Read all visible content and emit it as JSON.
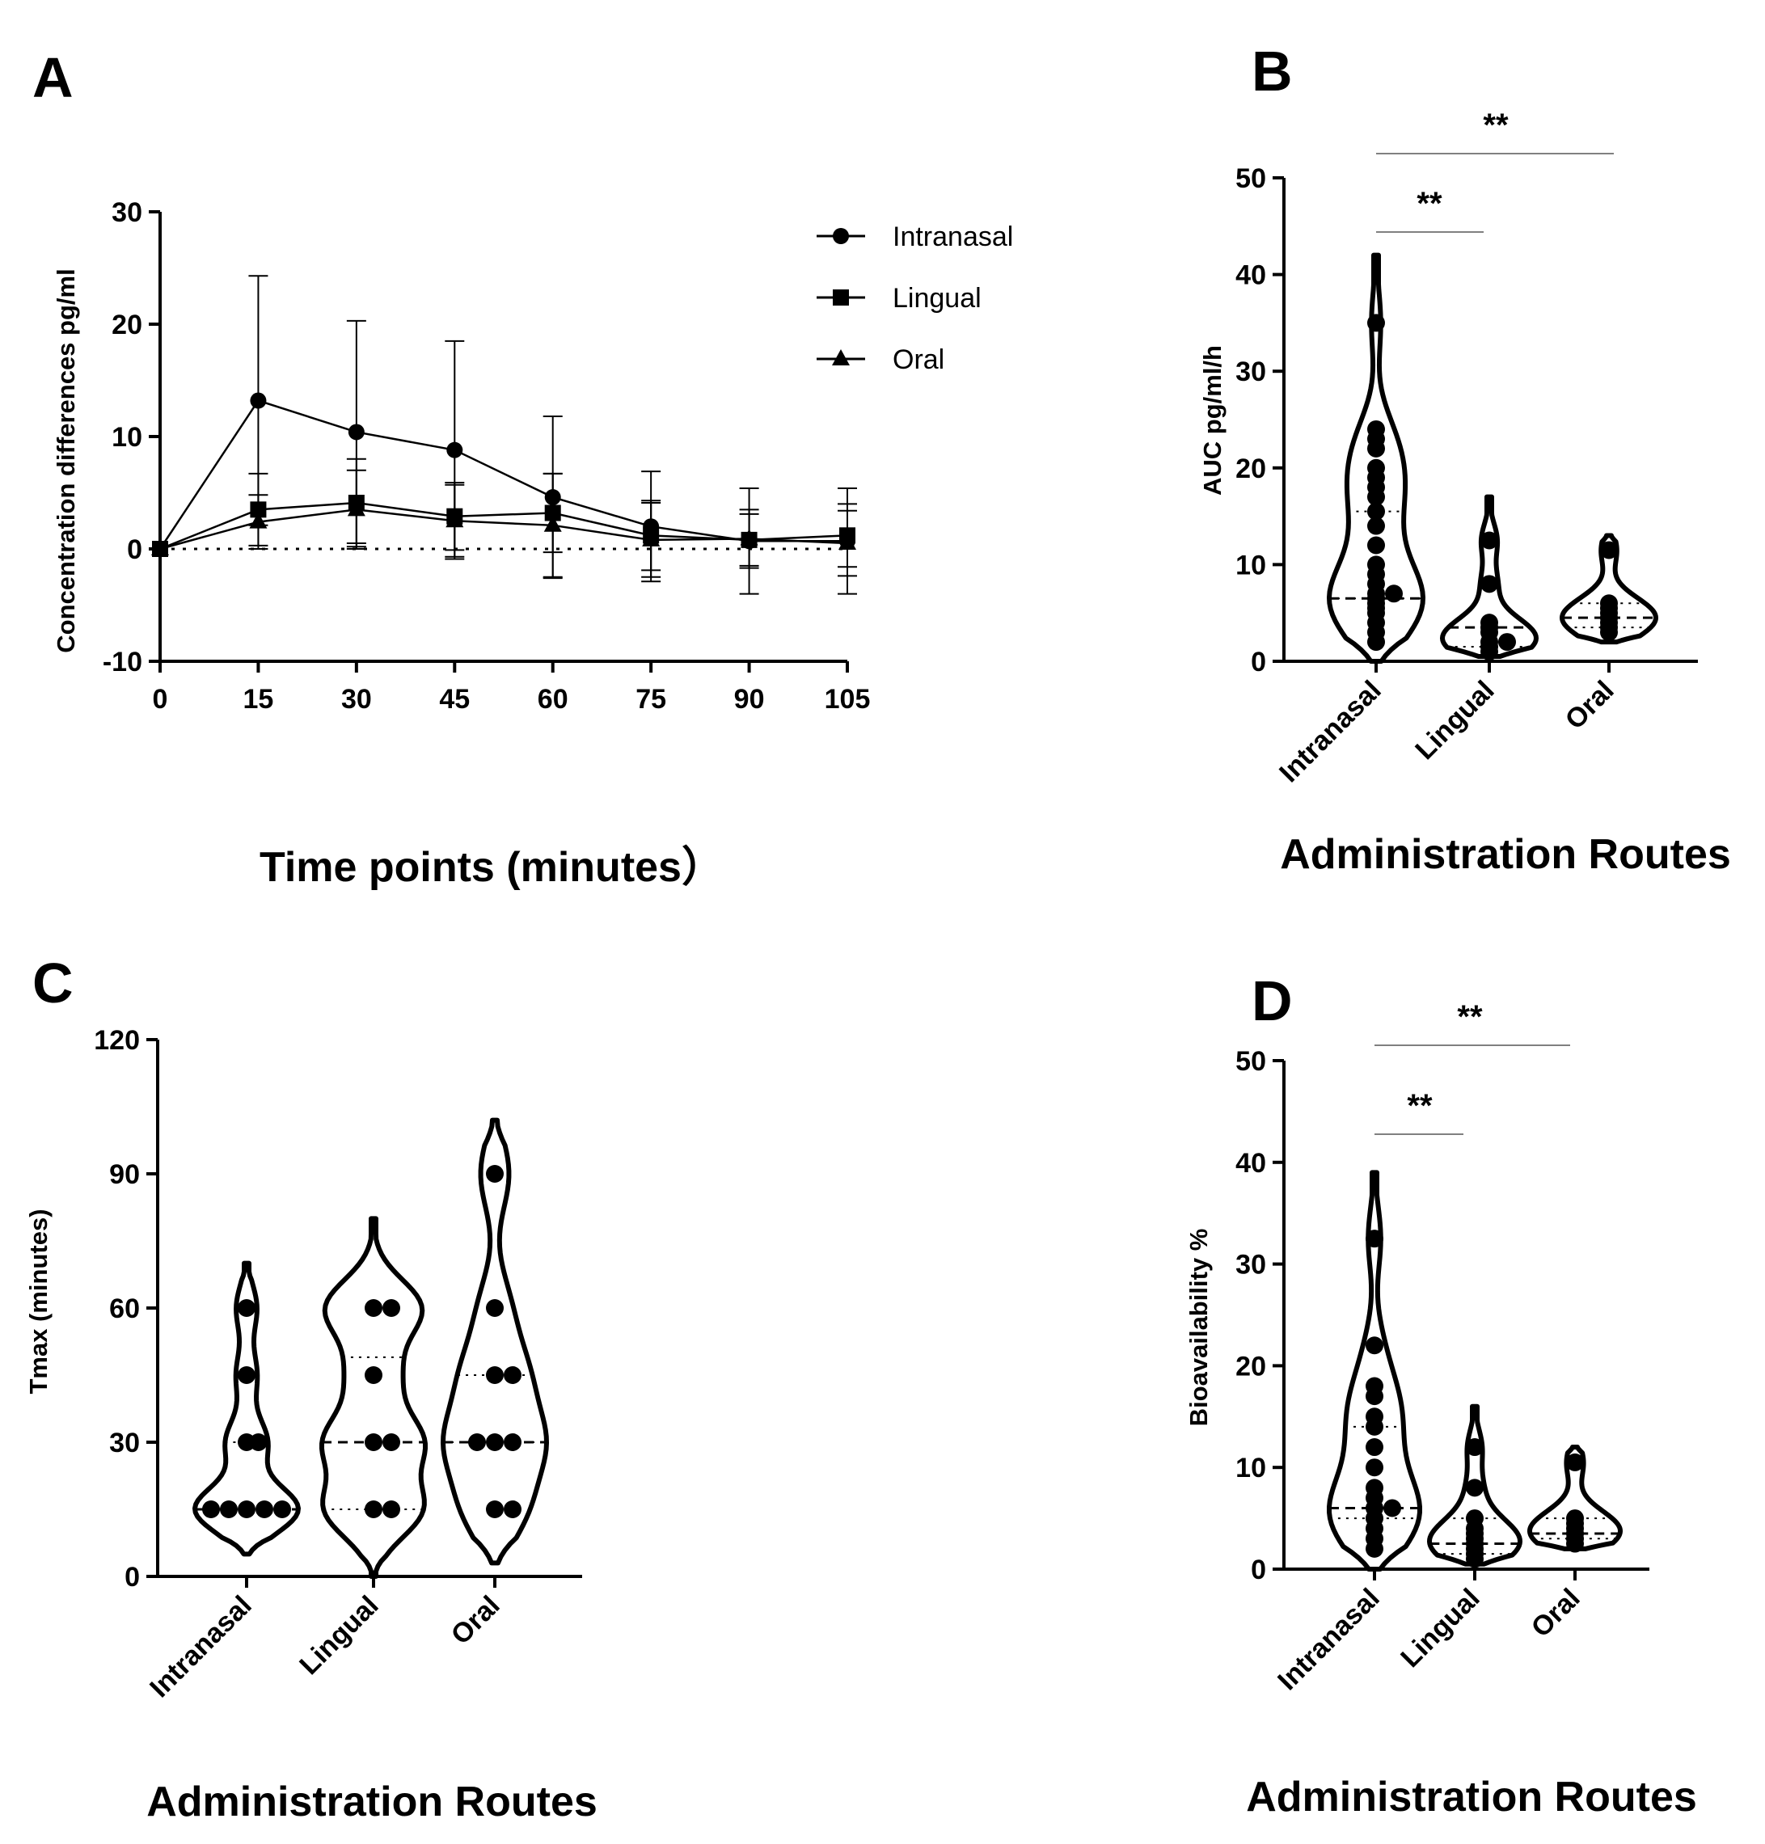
{
  "chart_data": [
    {
      "panel": "A",
      "type": "line",
      "x": [
        0,
        15,
        30,
        45,
        60,
        75,
        90,
        105
      ],
      "xlabel": "Time points (minutes）",
      "ylabel": "Concentration differences pg/ml",
      "xlim": [
        0,
        105
      ],
      "ylim": [
        -10,
        30
      ],
      "xticks": [
        "0",
        "15",
        "30",
        "45",
        "60",
        "75",
        "90",
        "105"
      ],
      "yticks": [
        "-10",
        "0",
        "10",
        "20",
        "30"
      ],
      "reference_line": {
        "y": 0,
        "style": "dotted"
      },
      "legend_position": "top-right",
      "series": [
        {
          "name": "Intranasal",
          "marker": "circle",
          "values": [
            0,
            13.2,
            10.4,
            8.8,
            4.6,
            2.0,
            0.7,
            0.7
          ],
          "error": [
            0,
            11.1,
            9.9,
            9.7,
            7.2,
            4.9,
            4.7,
            4.7
          ]
        },
        {
          "name": "Lingual",
          "marker": "square",
          "values": [
            0,
            3.5,
            4.1,
            2.9,
            3.2,
            1.2,
            0.8,
            1.2
          ],
          "error": [
            0,
            3.2,
            3.9,
            3.0,
            3.5,
            3.1,
            2.3,
            2.8
          ]
        },
        {
          "name": "Oral",
          "marker": "triangle",
          "values": [
            0,
            2.4,
            3.5,
            2.5,
            2.1,
            0.8,
            0.9,
            0.5
          ],
          "error": [
            0,
            2.4,
            3.5,
            3.2,
            4.6,
            3.3,
            2.6,
            2.9
          ]
        }
      ]
    },
    {
      "panel": "B",
      "type": "violin",
      "categories": [
        "Intranasal",
        "Lingual",
        "Oral"
      ],
      "xlabel": "Administration Routes",
      "ylabel": "AUC pg/ml/h",
      "ylim": [
        0,
        50
      ],
      "yticks": [
        "0",
        "10",
        "20",
        "30",
        "40",
        "50"
      ],
      "series": [
        {
          "name": "Intranasal",
          "range": [
            0,
            42
          ],
          "median": 6.5,
          "quartiles": [
            6.5,
            15.5
          ],
          "points": [
            2,
            3,
            4,
            5,
            5.5,
            6,
            6.5,
            7,
            7,
            8,
            9,
            10,
            12,
            14,
            15.5,
            17,
            18,
            19,
            20,
            22,
            23,
            24,
            35
          ]
        },
        {
          "name": "Lingual",
          "range": [
            0.5,
            17
          ],
          "median": 3.5,
          "quartiles": [
            1.5,
            8
          ],
          "points": [
            1,
            1.5,
            2,
            2,
            3,
            3.5,
            4,
            8,
            12.5
          ]
        },
        {
          "name": "Oral",
          "range": [
            2,
            13
          ],
          "median": 4.5,
          "quartiles": [
            3.5,
            6
          ],
          "points": [
            3,
            3.5,
            4,
            4.5,
            5,
            5.5,
            6,
            11.5
          ]
        }
      ],
      "significance": [
        {
          "groups": [
            "Intranasal",
            "Lingual"
          ],
          "label": "**"
        },
        {
          "groups": [
            "Intranasal",
            "Oral"
          ],
          "label": "**"
        }
      ]
    },
    {
      "panel": "C",
      "type": "violin",
      "categories": [
        "Intranasal",
        "Lingual",
        "Oral"
      ],
      "xlabel": "Administration Routes",
      "ylabel": "Tmax (minutes)",
      "ylim": [
        0,
        120
      ],
      "yticks": [
        "0",
        "30",
        "60",
        "90",
        "120"
      ],
      "series": [
        {
          "name": "Intranasal",
          "range": [
            5,
            70
          ],
          "median": 15,
          "quartiles": [
            15,
            30
          ],
          "points": [
            15,
            15,
            15,
            15,
            15,
            30,
            30,
            45,
            60
          ]
        },
        {
          "name": "Lingual",
          "range": [
            0,
            80
          ],
          "median": 30,
          "quartiles": [
            15,
            49
          ],
          "points": [
            15,
            15,
            30,
            30,
            45,
            60,
            60
          ]
        },
        {
          "name": "Oral",
          "range": [
            3,
            102
          ],
          "median": 30,
          "quartiles": [
            30,
            45
          ],
          "points": [
            15,
            15,
            30,
            30,
            30,
            45,
            45,
            60,
            90
          ]
        }
      ]
    },
    {
      "panel": "D",
      "type": "violin",
      "categories": [
        "Intranasal",
        "Lingual",
        "Oral"
      ],
      "xlabel": "Administration Routes",
      "ylabel": "Bioavailability %",
      "ylim": [
        0,
        50
      ],
      "yticks": [
        "0",
        "10",
        "20",
        "30",
        "40",
        "50"
      ],
      "series": [
        {
          "name": "Intranasal",
          "range": [
            0,
            39
          ],
          "median": 6,
          "quartiles": [
            5,
            14
          ],
          "points": [
            2,
            3,
            4,
            5,
            6,
            6,
            7,
            8,
            10,
            12,
            14,
            15,
            17,
            18,
            22,
            32.5
          ]
        },
        {
          "name": "Lingual",
          "range": [
            0.5,
            16
          ],
          "median": 2.5,
          "quartiles": [
            1.5,
            5
          ],
          "points": [
            1,
            1.5,
            2,
            2.5,
            3,
            3.5,
            4,
            5,
            8,
            12
          ]
        },
        {
          "name": "Oral",
          "range": [
            2,
            12
          ],
          "median": 3.5,
          "quartiles": [
            3,
            5
          ],
          "points": [
            2.5,
            3,
            3.5,
            4,
            4.5,
            5,
            10.5
          ]
        }
      ],
      "significance": [
        {
          "groups": [
            "Intranasal",
            "Lingual"
          ],
          "label": "**"
        },
        {
          "groups": [
            "Intranasal",
            "Oral"
          ],
          "label": "**"
        }
      ]
    }
  ]
}
